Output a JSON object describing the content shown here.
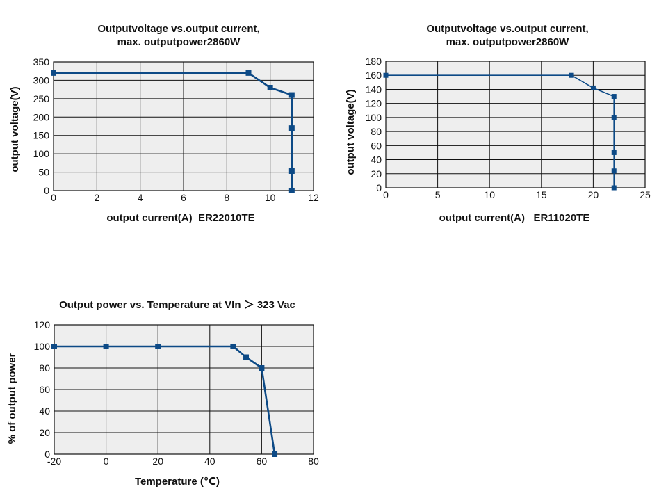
{
  "colors": {
    "series": "#0d4a86",
    "plot_background": "#eeeeee",
    "grid": "#111111"
  },
  "chart_data": [
    {
      "type": "line",
      "title_lines": [
        "Outputvoltage vs.output current,",
        "max. outputpower2860W"
      ],
      "xlabel": "output current(A)  ER22010TE",
      "ylabel": "output voltage(V)",
      "xlim": [
        0,
        12
      ],
      "ylim": [
        0,
        350
      ],
      "xticks": [
        0,
        2,
        4,
        6,
        8,
        10,
        12
      ],
      "yticks": [
        0,
        50,
        100,
        150,
        200,
        250,
        300,
        350
      ],
      "grid": true,
      "x": [
        0,
        9,
        10,
        11,
        11,
        11,
        11
      ],
      "y": [
        320,
        320,
        280,
        260,
        170,
        53,
        0
      ]
    },
    {
      "type": "line",
      "title_lines": [
        "Outputvoltage vs.output current,",
        "max. outputpower2860W"
      ],
      "xlabel": "output current(A)   ER11020TE",
      "ylabel": "output voltage(V)",
      "xlim": [
        0,
        25
      ],
      "ylim": [
        0,
        180
      ],
      "xticks": [
        0,
        5,
        10,
        15,
        20,
        25
      ],
      "yticks": [
        0,
        20,
        40,
        60,
        80,
        100,
        120,
        140,
        160,
        180
      ],
      "grid": true,
      "x": [
        0,
        17.9,
        20,
        22,
        22,
        22,
        22,
        22
      ],
      "y": [
        160,
        160,
        142,
        130,
        100,
        50,
        24,
        0
      ]
    },
    {
      "type": "line",
      "title_lines": [
        "Output power vs. Temperature at VIn ＞ 323 Vac"
      ],
      "xlabel": "Temperature (℃)",
      "ylabel": "% of output power",
      "xlim": [
        -20,
        80
      ],
      "ylim": [
        0,
        120
      ],
      "xticks": [
        -20,
        0,
        20,
        40,
        60,
        80
      ],
      "yticks": [
        0,
        20,
        40,
        60,
        80,
        100,
        120
      ],
      "grid": true,
      "x": [
        -20,
        0,
        20,
        49,
        54,
        60,
        65
      ],
      "y": [
        100,
        100,
        100,
        100,
        90,
        80,
        0
      ]
    }
  ]
}
